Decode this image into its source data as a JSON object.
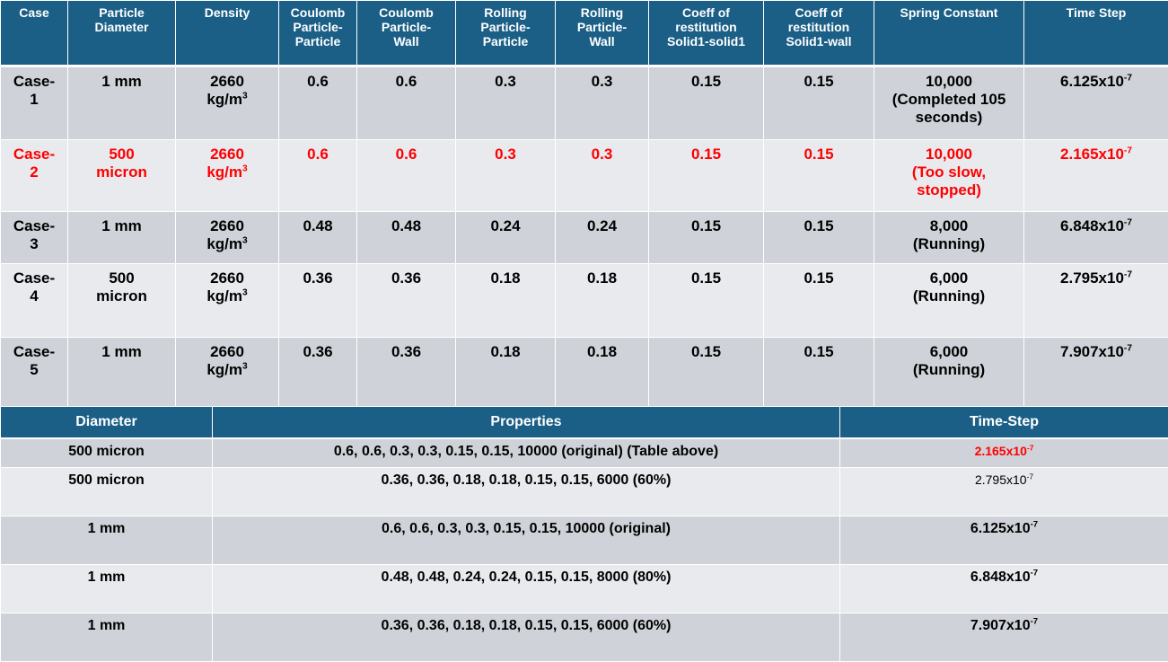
{
  "table1": {
    "headers": [
      "Case",
      "Particle\nDiameter",
      "Density",
      "Coulomb\nParticle-\nParticle",
      "Coulomb\nParticle-\nWall",
      "Rolling\nParticle-\nParticle",
      "Rolling\nParticle-\nWall",
      "Coeff of\nrestitution\nSolid1-solid1",
      "Coeff of\nrestitution\nSolid1-wall",
      "Spring Constant",
      "Time Step"
    ],
    "rows": [
      {
        "case": "Case-\n1",
        "diameter": "1 mm",
        "density": "2660\nkg/m",
        "density_exp": "3",
        "cpp": "0.6",
        "cpw": "0.6",
        "rpp": "0.3",
        "rpw": "0.3",
        "cor_ss": "0.15",
        "cor_sw": "0.15",
        "spring": "10,000\n(Completed 105\nseconds)",
        "ts_base": "6.125x10",
        "ts_exp": "-7"
      },
      {
        "case": "Case-\n2",
        "diameter": "500\nmicron",
        "density": "2660\nkg/m",
        "density_exp": "3",
        "cpp": "0.6",
        "cpw": "0.6",
        "rpp": "0.3",
        "rpw": "0.3",
        "cor_ss": "0.15",
        "cor_sw": "0.15",
        "spring": "10,000\n(Too slow,\nstopped)",
        "ts_base": "2.165x10",
        "ts_exp": "-7"
      },
      {
        "case": "Case-\n3",
        "diameter": "1 mm",
        "density": "2660\nkg/m",
        "density_exp": "3",
        "cpp": "0.48",
        "cpw": "0.48",
        "rpp": "0.24",
        "rpw": "0.24",
        "cor_ss": "0.15",
        "cor_sw": "0.15",
        "spring": "8,000\n(Running)",
        "ts_base": "6.848x10",
        "ts_exp": "-7"
      },
      {
        "case": "Case-\n4",
        "diameter": "500\nmicron",
        "density": "2660\nkg/m",
        "density_exp": "3",
        "cpp": "0.36",
        "cpw": "0.36",
        "rpp": "0.18",
        "rpw": "0.18",
        "cor_ss": "0.15",
        "cor_sw": "0.15",
        "spring": "6,000\n(Running)",
        "ts_base": "2.795x10",
        "ts_exp": "-7"
      },
      {
        "case": "Case-\n5",
        "diameter": "1 mm",
        "density": "2660\nkg/m",
        "density_exp": "3",
        "cpp": "0.36",
        "cpw": "0.36",
        "rpp": "0.18",
        "rpw": "0.18",
        "cor_ss": "0.15",
        "cor_sw": "0.15",
        "spring": "6,000\n(Running)",
        "ts_base": "7.907x10",
        "ts_exp": "-7"
      }
    ]
  },
  "table2": {
    "headers": [
      "Diameter",
      "Properties",
      "Time-Step"
    ],
    "rows": [
      {
        "diameter": "500 micron",
        "properties": "0.6, 0.6, 0.3, 0.3, 0.15, 0.15, 10000 (original) (Table above)",
        "ts_base": "2.165x10",
        "ts_exp": "-7"
      },
      {
        "diameter": "500 micron",
        "properties": "0.36, 0.36, 0.18, 0.18, 0.15, 0.15, 6000 (60%)",
        "ts_base": "2.795x10",
        "ts_exp": "-7"
      },
      {
        "diameter": "1 mm",
        "properties": "0.6, 0.6, 0.3, 0.3, 0.15, 0.15, 10000 (original)",
        "ts_base": "6.125x10",
        "ts_exp": "-7"
      },
      {
        "diameter": "1 mm",
        "properties": "0.48, 0.48, 0.24, 0.24, 0.15, 0.15, 8000 (80%)",
        "ts_base": "6.848x10",
        "ts_exp": "-7"
      },
      {
        "diameter": "1 mm",
        "properties": "0.36, 0.36, 0.18, 0.18, 0.15, 0.15, 6000 (60%)",
        "ts_base": "7.907x10",
        "ts_exp": "-7"
      }
    ]
  },
  "colors": {
    "header": "#1b5f86",
    "row_dark": "#cfd3d9",
    "row_light": "#e8eaee",
    "highlight": "#ff0000"
  }
}
